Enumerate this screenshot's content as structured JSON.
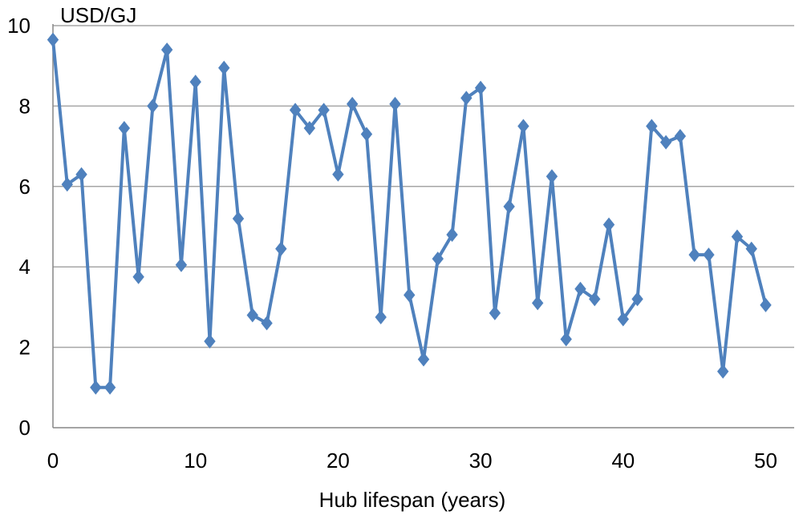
{
  "chart_data": {
    "type": "line",
    "title": "",
    "xlabel": "Hub lifespan (years)",
    "ylabel": "USD/GJ",
    "xlim": [
      0,
      52
    ],
    "ylim": [
      0,
      10
    ],
    "x_ticks": [
      0,
      10,
      20,
      30,
      40,
      50
    ],
    "y_ticks": [
      0,
      2,
      4,
      6,
      8,
      10
    ],
    "grid": "horizontal",
    "legend": "none",
    "series": [
      {
        "color": "#4F81BD",
        "marker": "diamond",
        "x": [
          0,
          1,
          2,
          3,
          4,
          5,
          6,
          7,
          8,
          9,
          10,
          11,
          12,
          13,
          14,
          15,
          16,
          17,
          18,
          19,
          20,
          21,
          22,
          23,
          24,
          25,
          26,
          27,
          28,
          29,
          30,
          31,
          32,
          33,
          34,
          35,
          36,
          37,
          38,
          39,
          40,
          41,
          42,
          43,
          44,
          45,
          46,
          47,
          48,
          49,
          50
        ],
        "values": [
          9.65,
          6.05,
          6.3,
          1.0,
          1.0,
          7.45,
          3.75,
          8.0,
          9.4,
          4.05,
          8.6,
          2.15,
          8.95,
          5.2,
          2.8,
          2.6,
          4.45,
          7.9,
          7.45,
          7.9,
          6.3,
          8.05,
          7.3,
          2.75,
          8.05,
          3.3,
          1.7,
          4.2,
          4.8,
          8.2,
          8.45,
          2.85,
          5.5,
          7.5,
          3.1,
          6.25,
          2.2,
          3.45,
          3.2,
          5.05,
          2.7,
          3.2,
          7.5,
          7.1,
          7.25,
          4.3,
          4.3,
          1.4,
          4.75,
          4.45,
          3.05
        ]
      }
    ]
  }
}
